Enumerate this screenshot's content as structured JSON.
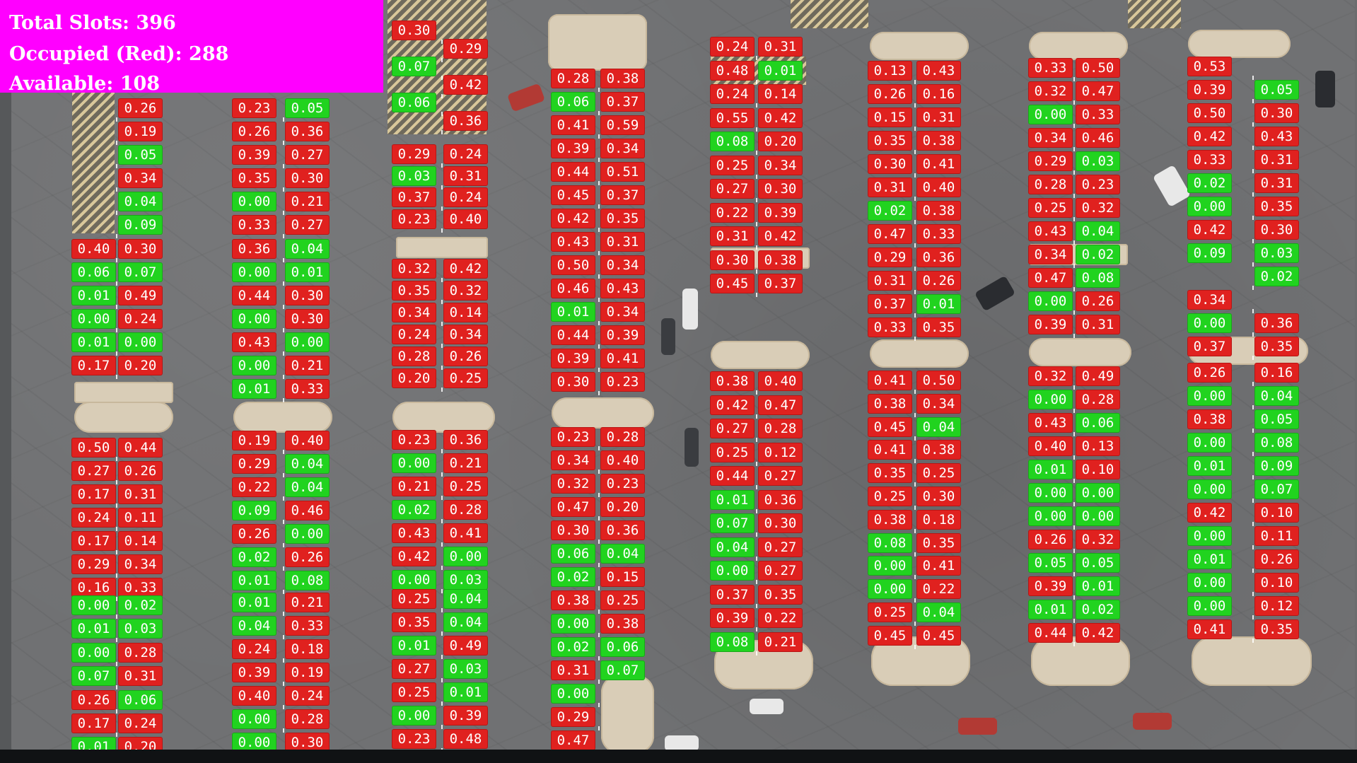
{
  "stats": {
    "total": "Total Slots: 396",
    "occupied": "Occupied (Red): 288",
    "available": "Available: 108"
  },
  "colors": {
    "occupied": "#e0211f",
    "available": "#21d31f",
    "stats_background": "#ff00ff"
  },
  "columns": [
    {
      "rows": [
        [
          null,
          "0.26"
        ],
        [
          null,
          "0.19"
        ],
        [
          null,
          "0.05"
        ],
        [
          null,
          "0.34"
        ],
        [
          null,
          "0.04"
        ],
        [
          null,
          "0.09"
        ],
        [
          "0.40",
          "0.30"
        ],
        [
          "0.06",
          "0.07"
        ],
        [
          "0.01",
          "0.49"
        ],
        [
          "0.00",
          "0.24"
        ],
        [
          "0.01",
          "0.00"
        ],
        [
          "0.17",
          "0.20"
        ],
        [
          "0.50",
          "0.44"
        ],
        [
          "0.27",
          "0.26"
        ],
        [
          "0.17",
          "0.31"
        ],
        [
          "0.24",
          "0.11"
        ],
        [
          "0.17",
          "0.14"
        ],
        [
          "0.29",
          "0.34"
        ],
        [
          "0.16",
          "0.33"
        ],
        [
          "0.00",
          "0.02"
        ],
        [
          "0.01",
          "0.03"
        ],
        [
          "0.00",
          "0.28"
        ],
        [
          "0.07",
          "0.31"
        ],
        [
          "0.26",
          "0.06"
        ],
        [
          "0.17",
          "0.24"
        ],
        [
          "0.01",
          "0.20"
        ]
      ]
    },
    {
      "rows": [
        [
          "0.23",
          "0.05"
        ],
        [
          "0.26",
          "0.36"
        ],
        [
          "0.39",
          "0.27"
        ],
        [
          "0.35",
          "0.30"
        ],
        [
          "0.00",
          "0.21"
        ],
        [
          "0.33",
          "0.27"
        ],
        [
          "0.36",
          "0.04"
        ],
        [
          "0.00",
          "0.01"
        ],
        [
          "0.44",
          "0.30"
        ],
        [
          "0.00",
          "0.30"
        ],
        [
          "0.43",
          "0.00"
        ],
        [
          "0.00",
          "0.21"
        ],
        [
          "0.01",
          "0.33"
        ],
        [
          "0.19",
          "0.40"
        ],
        [
          "0.29",
          "0.04"
        ],
        [
          "0.22",
          "0.04"
        ],
        [
          "0.09",
          "0.46"
        ],
        [
          "0.26",
          "0.00"
        ],
        [
          "0.02",
          "0.26"
        ],
        [
          "0.01",
          "0.08"
        ],
        [
          "0.01",
          "0.21"
        ],
        [
          "0.04",
          "0.33"
        ],
        [
          "0.24",
          "0.18"
        ],
        [
          "0.39",
          "0.19"
        ],
        [
          "0.40",
          "0.24"
        ],
        [
          "0.00",
          "0.28"
        ],
        [
          "0.00",
          "0.30"
        ]
      ]
    },
    {
      "rows": [
        [
          "0.30",
          null
        ],
        [
          null,
          "0.29"
        ],
        [
          "0.07",
          null
        ],
        [
          null,
          "0.42"
        ],
        [
          "0.06",
          null
        ],
        [
          null,
          "0.36"
        ],
        [
          "0.29",
          "0.24"
        ],
        [
          "0.03",
          "0.31"
        ],
        [
          "0.37",
          "0.24"
        ],
        [
          "0.23",
          "0.40"
        ],
        [
          "0.32",
          "0.42"
        ],
        [
          "0.35",
          "0.32"
        ],
        [
          "0.34",
          "0.14"
        ],
        [
          "0.24",
          "0.34"
        ],
        [
          "0.28",
          "0.26"
        ],
        [
          "0.20",
          "0.25"
        ],
        [
          "0.23",
          "0.36"
        ],
        [
          "0.00",
          "0.21"
        ],
        [
          "0.21",
          "0.25"
        ],
        [
          "0.02",
          "0.28"
        ],
        [
          "0.43",
          "0.41"
        ],
        [
          "0.42",
          "0.00"
        ],
        [
          "0.00",
          "0.03"
        ],
        [
          "0.25",
          "0.04"
        ],
        [
          "0.35",
          "0.04"
        ],
        [
          "0.01",
          "0.49"
        ],
        [
          "0.27",
          "0.03"
        ],
        [
          "0.25",
          "0.01"
        ],
        [
          "0.00",
          "0.39"
        ],
        [
          "0.23",
          "0.48"
        ]
      ]
    },
    {
      "rows": [
        [
          "0.28",
          "0.38"
        ],
        [
          "0.06",
          "0.37"
        ],
        [
          "0.41",
          "0.59"
        ],
        [
          "0.39",
          "0.34"
        ],
        [
          "0.44",
          "0.51"
        ],
        [
          "0.45",
          "0.37"
        ],
        [
          "0.42",
          "0.35"
        ],
        [
          "0.43",
          "0.31"
        ],
        [
          "0.50",
          "0.34"
        ],
        [
          "0.46",
          "0.43"
        ],
        [
          "0.01",
          "0.34"
        ],
        [
          "0.44",
          "0.39"
        ],
        [
          "0.39",
          "0.41"
        ],
        [
          "0.30",
          "0.23"
        ],
        [
          "0.23",
          "0.28"
        ],
        [
          "0.34",
          "0.40"
        ],
        [
          "0.32",
          "0.23"
        ],
        [
          "0.47",
          "0.20"
        ],
        [
          "0.30",
          "0.36"
        ],
        [
          "0.06",
          "0.04"
        ],
        [
          "0.02",
          "0.15"
        ],
        [
          "0.38",
          "0.25"
        ],
        [
          "0.00",
          "0.38"
        ],
        [
          "0.02",
          "0.06"
        ],
        [
          "0.31",
          "0.07"
        ],
        [
          "0.00",
          null
        ],
        [
          "0.29",
          null
        ],
        [
          "0.47",
          null
        ]
      ]
    },
    {
      "rows": [
        [
          "0.24",
          "0.31"
        ],
        [
          "0.48",
          "0.01"
        ],
        [
          "0.24",
          "0.14"
        ],
        [
          "0.55",
          "0.42"
        ],
        [
          "0.08",
          "0.20"
        ],
        [
          "0.25",
          "0.34"
        ],
        [
          "0.27",
          "0.30"
        ],
        [
          "0.22",
          "0.39"
        ],
        [
          "0.31",
          "0.42"
        ],
        [
          "0.30",
          "0.38"
        ],
        [
          "0.45",
          "0.37"
        ],
        [
          "0.38",
          "0.40"
        ],
        [
          "0.42",
          "0.47"
        ],
        [
          "0.27",
          "0.28"
        ],
        [
          "0.25",
          "0.12"
        ],
        [
          "0.44",
          "0.27"
        ],
        [
          "0.01",
          "0.36"
        ],
        [
          "0.07",
          "0.30"
        ],
        [
          "0.04",
          "0.27"
        ],
        [
          "0.00",
          "0.27"
        ],
        [
          "0.37",
          "0.35"
        ],
        [
          "0.39",
          "0.22"
        ],
        [
          "0.08",
          "0.21"
        ]
      ]
    },
    {
      "rows": [
        [
          "0.13",
          "0.43"
        ],
        [
          "0.26",
          "0.16"
        ],
        [
          "0.15",
          "0.31"
        ],
        [
          "0.35",
          "0.38"
        ],
        [
          "0.30",
          "0.41"
        ],
        [
          "0.31",
          "0.40"
        ],
        [
          "0.02",
          "0.38"
        ],
        [
          "0.47",
          "0.33"
        ],
        [
          "0.29",
          "0.36"
        ],
        [
          "0.31",
          "0.26"
        ],
        [
          "0.37",
          "0.01"
        ],
        [
          "0.33",
          "0.35"
        ],
        [
          "0.41",
          "0.50"
        ],
        [
          "0.38",
          "0.34"
        ],
        [
          "0.45",
          "0.04"
        ],
        [
          "0.41",
          "0.38"
        ],
        [
          "0.35",
          "0.25"
        ],
        [
          "0.25",
          "0.30"
        ],
        [
          "0.38",
          "0.18"
        ],
        [
          "0.08",
          "0.35"
        ],
        [
          "0.00",
          "0.41"
        ],
        [
          "0.00",
          "0.22"
        ],
        [
          "0.25",
          "0.04"
        ],
        [
          "0.45",
          "0.45"
        ]
      ]
    },
    {
      "rows": [
        [
          "0.33",
          "0.50"
        ],
        [
          "0.32",
          "0.47"
        ],
        [
          "0.00",
          "0.33"
        ],
        [
          "0.34",
          "0.46"
        ],
        [
          "0.29",
          "0.03"
        ],
        [
          "0.28",
          "0.23"
        ],
        [
          "0.25",
          "0.32"
        ],
        [
          "0.43",
          "0.04"
        ],
        [
          "0.34",
          "0.02"
        ],
        [
          "0.47",
          "0.08"
        ],
        [
          "0.00",
          "0.26"
        ],
        [
          "0.39",
          "0.31"
        ],
        [
          "0.32",
          "0.49"
        ],
        [
          "0.00",
          "0.28"
        ],
        [
          "0.43",
          "0.06"
        ],
        [
          "0.40",
          "0.13"
        ],
        [
          "0.01",
          "0.10"
        ],
        [
          "0.00",
          "0.00"
        ],
        [
          "0.00",
          "0.00"
        ],
        [
          "0.26",
          "0.32"
        ],
        [
          "0.05",
          "0.05"
        ],
        [
          "0.39",
          "0.01"
        ],
        [
          "0.01",
          "0.02"
        ],
        [
          "0.44",
          "0.42"
        ]
      ]
    },
    {
      "rows": [
        [
          "0.53",
          null
        ],
        [
          "0.39",
          "0.05"
        ],
        [
          "0.50",
          "0.30"
        ],
        [
          "0.42",
          "0.43"
        ],
        [
          "0.33",
          "0.31"
        ],
        [
          "0.02",
          "0.31"
        ],
        [
          "0.00",
          "0.35"
        ],
        [
          "0.42",
          "0.30"
        ],
        [
          "0.09",
          "0.03"
        ],
        [
          null,
          "0.02"
        ],
        [
          "0.34",
          null
        ],
        [
          "0.00",
          "0.36"
        ],
        [
          "0.37",
          "0.35"
        ],
        [
          "0.26",
          "0.16"
        ],
        [
          "0.00",
          "0.04"
        ],
        [
          "0.38",
          "0.05"
        ],
        [
          "0.00",
          "0.08"
        ],
        [
          "0.01",
          "0.09"
        ],
        [
          "0.00",
          "0.07"
        ],
        [
          "0.42",
          "0.10"
        ],
        [
          "0.00",
          "0.11"
        ],
        [
          "0.01",
          "0.26"
        ],
        [
          "0.00",
          "0.10"
        ],
        [
          "0.00",
          "0.12"
        ],
        [
          "0.41",
          "0.35"
        ]
      ]
    }
  ]
}
